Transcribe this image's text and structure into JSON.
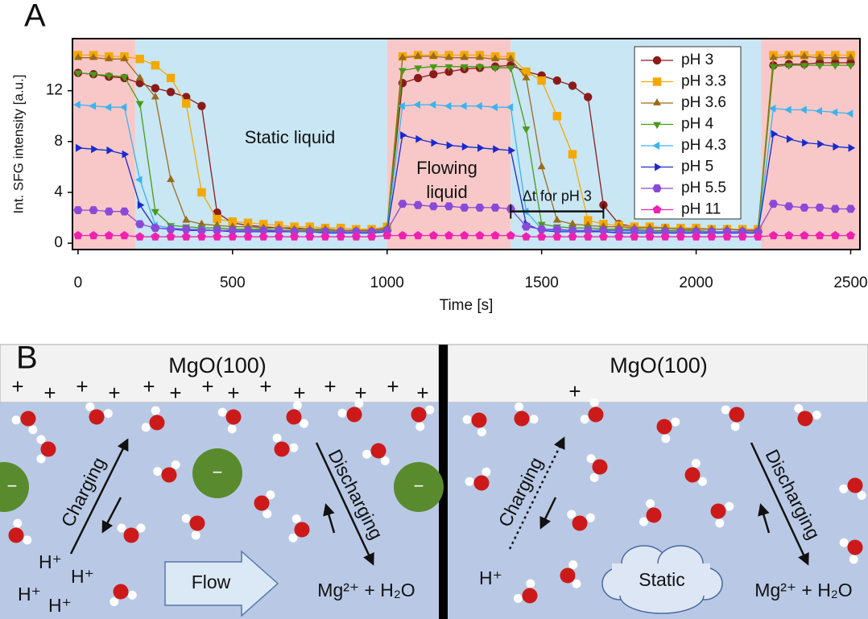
{
  "chart_data": {
    "type": "line",
    "label": "A",
    "ylabel": "Int. SFG intensity [a.u.]",
    "xlabel": "Time [s]",
    "xlim": [
      -18,
      2530
    ],
    "ylim": [
      -0.5,
      16.1
    ],
    "xticks": [
      0,
      500,
      1000,
      1500,
      2000,
      2500
    ],
    "yticks": [
      0,
      4,
      8,
      12
    ],
    "legend": "upper right",
    "regions": [
      {
        "start": -18,
        "end": 185,
        "color": "#f8c8c8"
      },
      {
        "start": 185,
        "end": 1000,
        "color": "#c8e6f4"
      },
      {
        "start": 1000,
        "end": 1400,
        "color": "#f8c8c8"
      },
      {
        "start": 1400,
        "end": 2210,
        "color": "#c8e6f4"
      },
      {
        "start": 2210,
        "end": 2530,
        "color": "#f8c8c8"
      }
    ],
    "annotations": [
      "Static liquid",
      "Flowing",
      "liquid"
    ],
    "delta_t": {
      "label": "Δt for pH 3",
      "start": 1400,
      "end": 1700
    },
    "x": [
      0,
      50,
      100,
      150,
      200,
      250,
      300,
      350,
      400,
      450,
      500,
      550,
      600,
      650,
      700,
      750,
      800,
      850,
      900,
      950,
      1000,
      1050,
      1100,
      1150,
      1200,
      1250,
      1300,
      1350,
      1400,
      1450,
      1500,
      1550,
      1600,
      1650,
      1700,
      1750,
      1800,
      1850,
      1900,
      1950,
      2000,
      2050,
      2100,
      2150,
      2200,
      2250,
      2300,
      2350,
      2400,
      2450,
      2500
    ],
    "series": [
      {
        "name": "pH 3",
        "color": "#8b1a1a",
        "marker": "circle",
        "values": [
          13.4,
          13.3,
          13.1,
          13.0,
          12.6,
          12.2,
          11.9,
          11.5,
          10.8,
          2.4,
          1.6,
          1.4,
          1.3,
          1.2,
          1.2,
          1.1,
          1.1,
          1.0,
          1.0,
          1.0,
          1.2,
          12.6,
          13.0,
          13.3,
          13.5,
          13.7,
          13.8,
          13.9,
          14.0,
          13.5,
          13.2,
          12.8,
          12.4,
          11.5,
          3.0,
          1.5,
          1.3,
          1.3,
          1.2,
          1.2,
          1.2,
          1.1,
          1.1,
          1.1,
          1.1,
          14.0,
          14.1,
          14.1,
          14.2,
          14.2,
          14.2
        ]
      },
      {
        "name": "pH 3.3",
        "color": "#f5a800",
        "marker": "square",
        "values": [
          14.8,
          14.8,
          14.7,
          14.7,
          14.5,
          14.0,
          13.0,
          11.0,
          4.0,
          1.9,
          1.7,
          1.6,
          1.5,
          1.4,
          1.3,
          1.3,
          1.2,
          1.2,
          1.1,
          1.1,
          1.3,
          14.7,
          14.8,
          14.8,
          14.8,
          14.8,
          14.8,
          14.7,
          14.7,
          13.5,
          12.8,
          10.0,
          7.0,
          1.8,
          1.5,
          1.4,
          1.3,
          1.3,
          1.2,
          1.2,
          1.2,
          1.1,
          1.1,
          1.1,
          1.1,
          14.8,
          14.8,
          14.8,
          14.8,
          14.8,
          14.8
        ]
      },
      {
        "name": "pH 3.6",
        "color": "#9b6a1a",
        "marker": "triangle-up",
        "values": [
          14.6,
          14.6,
          14.5,
          14.5,
          13.0,
          11.5,
          5.0,
          1.8,
          1.5,
          1.4,
          1.3,
          1.3,
          1.2,
          1.2,
          1.1,
          1.1,
          1.1,
          1.0,
          1.0,
          1.0,
          1.2,
          14.6,
          14.7,
          14.7,
          14.6,
          14.6,
          14.6,
          14.5,
          14.5,
          13.0,
          6.0,
          1.8,
          1.5,
          1.4,
          1.3,
          1.3,
          1.2,
          1.2,
          1.2,
          1.1,
          1.1,
          1.1,
          1.1,
          1.0,
          1.0,
          14.6,
          14.7,
          14.7,
          14.6,
          14.6,
          14.6
        ]
      },
      {
        "name": "pH 4",
        "color": "#4a9a1a",
        "marker": "triangle-down",
        "values": [
          13.4,
          13.3,
          13.2,
          13.1,
          11.0,
          2.5,
          1.4,
          1.3,
          1.2,
          1.2,
          1.1,
          1.1,
          1.1,
          1.0,
          1.0,
          1.0,
          1.0,
          0.9,
          0.9,
          0.9,
          1.1,
          13.6,
          13.8,
          13.9,
          13.9,
          13.9,
          13.9,
          13.8,
          13.8,
          9.0,
          1.5,
          1.3,
          1.2,
          1.2,
          1.1,
          1.1,
          1.1,
          1.0,
          1.0,
          1.0,
          1.0,
          0.9,
          0.9,
          0.9,
          0.9,
          13.9,
          14.0,
          14.0,
          14.0,
          14.0,
          14.0
        ]
      },
      {
        "name": "pH 4.3",
        "color": "#3ab4f0",
        "marker": "triangle-left",
        "values": [
          10.9,
          10.8,
          10.7,
          10.7,
          5.0,
          1.4,
          1.2,
          1.1,
          1.1,
          1.0,
          1.0,
          1.0,
          1.0,
          0.9,
          0.9,
          0.9,
          0.9,
          0.9,
          0.9,
          0.9,
          1.0,
          10.8,
          10.9,
          10.9,
          10.8,
          10.8,
          10.8,
          10.7,
          10.7,
          2.5,
          1.1,
          1.0,
          1.0,
          1.0,
          0.9,
          0.9,
          0.9,
          0.9,
          0.9,
          0.9,
          0.9,
          0.9,
          0.9,
          0.9,
          0.9,
          10.6,
          10.5,
          10.5,
          10.4,
          10.3,
          10.2
        ]
      },
      {
        "name": "pH 5",
        "color": "#1a2ad0",
        "marker": "triangle-right",
        "values": [
          7.5,
          7.4,
          7.3,
          7.0,
          3.0,
          1.2,
          1.1,
          1.0,
          1.0,
          1.0,
          0.9,
          0.9,
          0.9,
          0.9,
          0.9,
          0.9,
          0.8,
          0.8,
          0.8,
          0.8,
          0.9,
          8.5,
          8.2,
          7.9,
          7.7,
          7.6,
          7.5,
          7.4,
          7.3,
          1.5,
          1.0,
          0.9,
          0.9,
          0.9,
          0.9,
          0.8,
          0.8,
          0.8,
          0.8,
          0.8,
          0.8,
          0.8,
          0.8,
          0.8,
          0.8,
          8.6,
          8.2,
          7.9,
          7.8,
          7.6,
          7.5
        ]
      },
      {
        "name": "pH 5.5",
        "color": "#8a4ad8",
        "marker": "hexagon",
        "values": [
          2.6,
          2.6,
          2.5,
          2.5,
          1.5,
          1.2,
          1.1,
          1.1,
          1.0,
          1.0,
          1.0,
          1.0,
          1.0,
          1.0,
          0.9,
          0.9,
          0.9,
          0.9,
          0.9,
          0.9,
          1.0,
          3.1,
          3.0,
          2.9,
          2.9,
          2.8,
          2.8,
          2.8,
          2.7,
          1.3,
          1.1,
          1.1,
          1.0,
          1.0,
          1.0,
          1.0,
          1.0,
          0.9,
          0.9,
          0.9,
          0.9,
          0.9,
          0.9,
          0.9,
          0.9,
          3.1,
          2.9,
          2.8,
          2.8,
          2.7,
          2.7
        ]
      },
      {
        "name": "pH 11",
        "color": "#f020b0",
        "marker": "pentagon",
        "values": [
          0.6,
          0.6,
          0.6,
          0.6,
          0.5,
          0.5,
          0.5,
          0.5,
          0.5,
          0.5,
          0.5,
          0.5,
          0.5,
          0.5,
          0.5,
          0.5,
          0.5,
          0.5,
          0.5,
          0.5,
          0.6,
          0.6,
          0.6,
          0.6,
          0.6,
          0.6,
          0.6,
          0.6,
          0.6,
          0.5,
          0.5,
          0.5,
          0.5,
          0.5,
          0.5,
          0.5,
          0.5,
          0.5,
          0.5,
          0.5,
          0.5,
          0.5,
          0.5,
          0.5,
          0.5,
          0.6,
          0.6,
          0.6,
          0.6,
          0.6,
          0.6
        ]
      }
    ]
  },
  "panel_b": {
    "label": "B",
    "left": {
      "surface": "MgO(100)",
      "plus": "+",
      "minus": "−",
      "charging": "Charging",
      "discharging": "Discharging",
      "proton": "H⁺",
      "flow": "Flow",
      "products": "Mg²⁺ + H₂O"
    },
    "right": {
      "surface": "MgO(100)",
      "plus": "+",
      "charging": "Charging",
      "discharging": "Discharging",
      "proton": "H⁺",
      "static": "Static",
      "products": "Mg²⁺ + H₂O"
    }
  }
}
